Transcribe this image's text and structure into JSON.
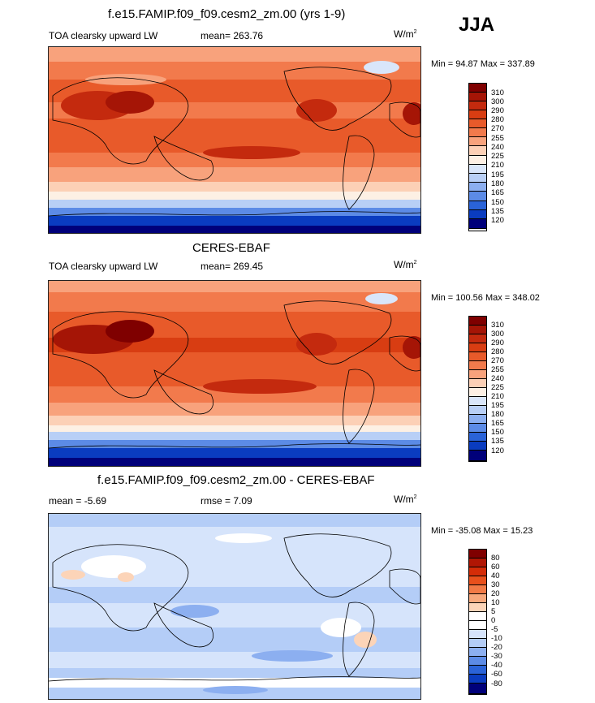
{
  "season": "JJA",
  "panels": [
    {
      "title": "f.e15.FAMIP.f09_f09.cesm2_zm.00 (yrs 1-9)",
      "left_label": "TOA clearsky upward LW",
      "stat_label": "mean= 263.76",
      "units": "W/m",
      "units_exp": "2",
      "minmax": "Min =  94.87 Max = 337.89",
      "colorbar_ticks": [
        "310",
        "300",
        "290",
        "280",
        "270",
        "255",
        "240",
        "225",
        "210",
        "195",
        "180",
        "165",
        "150",
        "135",
        "120"
      ]
    },
    {
      "title": "CERES-EBAF",
      "left_label": "TOA clearsky upward LW",
      "stat_label": "mean= 269.45",
      "units": "W/m",
      "units_exp": "2",
      "minmax": "Min = 100.56 Max = 348.02",
      "colorbar_ticks": [
        "310",
        "300",
        "290",
        "280",
        "270",
        "255",
        "240",
        "225",
        "210",
        "195",
        "180",
        "165",
        "150",
        "135",
        "120"
      ]
    },
    {
      "title": "f.e15.FAMIP.f09_f09.cesm2_zm.00 - CERES-EBAF",
      "left_label": "mean =  -5.69",
      "stat_label": "rmse =   7.09",
      "units": "W/m",
      "units_exp": "2",
      "minmax": "Min = -35.08 Max =  15.23",
      "colorbar_ticks": [
        "80",
        "60",
        "40",
        "30",
        "20",
        "10",
        "5",
        "0",
        "-5",
        "-10",
        "-20",
        "-30",
        "-40",
        "-60",
        "-80"
      ]
    }
  ],
  "colors": {
    "abs_scale": [
      "#7f0000",
      "#a51506",
      "#c42a0e",
      "#d83d12",
      "#e85a2a",
      "#f27a4c",
      "#f8a27c",
      "#fcd0b6",
      "#fdf0e4",
      "#d9e6fa",
      "#b8cff6",
      "#8caff0",
      "#5c8be6",
      "#2a63d8",
      "#0a3cc0",
      "#00007a"
    ],
    "diff_scale": [
      "#7f0000",
      "#b01604",
      "#d42c08",
      "#e8501c",
      "#f27a46",
      "#f8a87c",
      "#fcd4b8",
      "#ffffff",
      "#ffffff",
      "#d6e4fb",
      "#b4cdf7",
      "#8caff0",
      "#5c8be6",
      "#2a63d8",
      "#0a3cc0",
      "#00007a"
    ]
  }
}
